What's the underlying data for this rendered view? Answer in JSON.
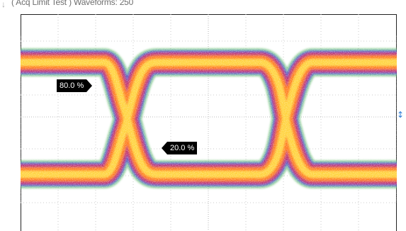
{
  "header": {
    "status_text": "( Acq Limit Test )",
    "waveforms_text": "Waveforms: 250"
  },
  "icons": {
    "trigger_marker": "down-arrow-icon",
    "level_marker": "level-arrow-icon"
  },
  "markers": {
    "upper": "80.0 %",
    "lower": "20.0 %"
  },
  "colors": {
    "background": "#ffffff",
    "grid": "#c8c8c8",
    "trace_core": "#ffd23a",
    "trace_mid": "#ff7a1a",
    "trace_edge": "#d1265e",
    "trace_outer": "#3a2bd0",
    "trace_fringe": "#3fae4a",
    "level_marker": "#2b7bd6"
  }
}
